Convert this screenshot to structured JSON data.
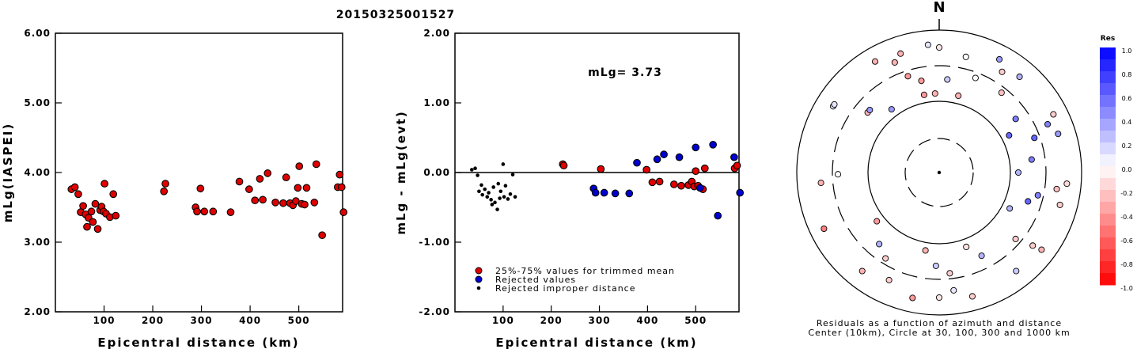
{
  "title": "20150325001527",
  "chart_data": [
    {
      "type": "scatter",
      "xlabel": "Epicentral distance (km)",
      "ylabel": "mLg(IASPEI)",
      "xlim": [
        0,
        590
      ],
      "ylim": [
        2.0,
        6.0
      ],
      "xticks": [
        "100",
        "200",
        "300",
        "400",
        "500"
      ],
      "yticks": [
        "2.00",
        "3.00",
        "4.00",
        "5.00",
        "6.00"
      ],
      "series": [
        {
          "color": "#e00000",
          "points": [
            [
              33,
              3.76
            ],
            [
              40,
              3.79
            ],
            [
              47,
              3.69
            ],
            [
              52,
              3.43
            ],
            [
              57,
              3.52
            ],
            [
              62,
              3.4
            ],
            [
              65,
              3.22
            ],
            [
              68,
              3.35
            ],
            [
              74,
              3.44
            ],
            [
              77,
              3.29
            ],
            [
              82,
              3.55
            ],
            [
              87,
              3.19
            ],
            [
              92,
              3.46
            ],
            [
              95,
              3.51
            ],
            [
              99,
              3.44
            ],
            [
              101,
              3.84
            ],
            [
              104,
              3.41
            ],
            [
              112,
              3.36
            ],
            [
              119,
              3.69
            ],
            [
              124,
              3.38
            ],
            [
              223,
              3.73
            ],
            [
              226,
              3.84
            ],
            [
              288,
              3.5
            ],
            [
              291,
              3.44
            ],
            [
              298,
              3.77
            ],
            [
              306,
              3.44
            ],
            [
              324,
              3.44
            ],
            [
              360,
              3.43
            ],
            [
              378,
              3.87
            ],
            [
              398,
              3.76
            ],
            [
              410,
              3.6
            ],
            [
              420,
              3.91
            ],
            [
              426,
              3.61
            ],
            [
              436,
              3.99
            ],
            [
              452,
              3.57
            ],
            [
              468,
              3.56
            ],
            [
              474,
              3.93
            ],
            [
              482,
              3.56
            ],
            [
              488,
              3.53
            ],
            [
              494,
              3.59
            ],
            [
              498,
              3.78
            ],
            [
              501,
              4.09
            ],
            [
              506,
              3.55
            ],
            [
              512,
              3.54
            ],
            [
              516,
              3.78
            ],
            [
              532,
              3.57
            ],
            [
              536,
              4.12
            ],
            [
              548,
              3.1
            ],
            [
              580,
              3.79
            ],
            [
              584,
              3.97
            ],
            [
              588,
              3.79
            ],
            [
              592,
              3.43
            ]
          ]
        }
      ]
    },
    {
      "type": "scatter",
      "xlabel": "Epicentral distance (km)",
      "ylabel": "mLg - mLg(evt)",
      "xlim": [
        0,
        590
      ],
      "ylim": [
        -2.0,
        2.0
      ],
      "xticks": [
        "100",
        "200",
        "300",
        "400",
        "500"
      ],
      "yticks": [
        "-2.00",
        "-1.00",
        "0.00",
        "1.00",
        "2.00"
      ],
      "annotation": "mLg= 3.73",
      "legend": [
        {
          "label": "25%-75% values for trimmed mean",
          "color": "#e00000"
        },
        {
          "label": "Rejected values",
          "color": "#0000d0"
        },
        {
          "label": "Rejected improper distance",
          "color": "#000000"
        }
      ],
      "series": [
        {
          "color": "#e00000",
          "points": [
            [
              224,
              0.12
            ],
            [
              226,
              0.1
            ],
            [
              303,
              0.05
            ],
            [
              398,
              0.04
            ],
            [
              410,
              -0.14
            ],
            [
              425,
              -0.13
            ],
            [
              455,
              -0.17
            ],
            [
              470,
              -0.19
            ],
            [
              485,
              -0.18
            ],
            [
              492,
              -0.13
            ],
            [
              497,
              -0.2
            ],
            [
              500,
              0.02
            ],
            [
              505,
              -0.19
            ],
            [
              515,
              -0.24
            ],
            [
              519,
              0.06
            ],
            [
              581,
              0.06
            ],
            [
              586,
              0.1
            ]
          ]
        },
        {
          "color": "#0000d0",
          "points": [
            [
              288,
              -0.23
            ],
            [
              292,
              -0.29
            ],
            [
              310,
              -0.29
            ],
            [
              333,
              -0.3
            ],
            [
              362,
              -0.3
            ],
            [
              378,
              0.14
            ],
            [
              420,
              0.19
            ],
            [
              434,
              0.26
            ],
            [
              466,
              0.22
            ],
            [
              500,
              0.36
            ],
            [
              509,
              -0.22
            ],
            [
              536,
              0.4
            ],
            [
              546,
              -0.62
            ],
            [
              580,
              0.22
            ],
            [
              592,
              -0.29
            ]
          ]
        },
        {
          "color": "#000000",
          "points": [
            [
              35,
              0.04
            ],
            [
              42,
              0.06
            ],
            [
              47,
              -0.04
            ],
            [
              50,
              -0.27
            ],
            [
              55,
              -0.18
            ],
            [
              57,
              -0.32
            ],
            [
              62,
              -0.24
            ],
            [
              67,
              -0.35
            ],
            [
              70,
              -0.29
            ],
            [
              75,
              -0.39
            ],
            [
              77,
              -0.46
            ],
            [
              80,
              -0.21
            ],
            [
              83,
              -0.43
            ],
            [
              88,
              -0.53
            ],
            [
              90,
              -0.16
            ],
            [
              93,
              -0.37
            ],
            [
              95,
              -0.27
            ],
            [
              100,
              0.12
            ],
            [
              102,
              -0.35
            ],
            [
              105,
              -0.19
            ],
            [
              110,
              -0.38
            ],
            [
              115,
              -0.31
            ],
            [
              120,
              -0.03
            ],
            [
              125,
              -0.35
            ]
          ]
        }
      ]
    },
    {
      "type": "scatter",
      "subtype": "polar-map",
      "north_label": "N",
      "caption_line1": "Residuals as a function of azimuth and distance",
      "caption_line2": "Center (10km), Circle at 30, 100, 300 and 1000 km",
      "colorbar": {
        "title": "Res",
        "labels": [
          "1.0",
          "0.8",
          "0.6",
          "0.4",
          "0.2",
          "0.0",
          "-0.2",
          "-0.4",
          "-0.6",
          "-0.8",
          "-1.0"
        ]
      },
      "stations": [
        [
          0,
          -0.1
        ],
        [
          5,
          0.2
        ],
        [
          14,
          -0.3
        ],
        [
          28,
          0.4
        ],
        [
          32,
          -0.2
        ],
        [
          38,
          -0.25
        ],
        [
          40,
          0.3
        ],
        [
          55,
          0.5
        ],
        [
          62,
          0.6
        ],
        [
          63,
          -0.2
        ],
        [
          66,
          0.5
        ],
        [
          70,
          0.6
        ],
        [
          72,
          0.4
        ],
        [
          82,
          0.5
        ],
        [
          90,
          0.3
        ],
        [
          95,
          -0.15
        ],
        [
          98,
          -0.25
        ],
        [
          103,
          0.5
        ],
        [
          105,
          -0.2
        ],
        [
          108,
          0.6
        ],
        [
          117,
          0.3
        ],
        [
          127,
          -0.3
        ],
        [
          128,
          -0.2
        ],
        [
          131,
          -0.2
        ],
        [
          142,
          0.2
        ],
        [
          153,
          0.3
        ],
        [
          160,
          -0.1
        ],
        [
          165,
          -0.2
        ],
        [
          173,
          0.1
        ],
        [
          174,
          -0.2
        ],
        [
          180,
          -0.1
        ],
        [
          182,
          0.2
        ],
        [
          190,
          -0.3
        ],
        [
          192,
          -0.4
        ],
        [
          205,
          -0.2
        ],
        [
          212,
          -0.2
        ],
        [
          218,
          -0.3
        ],
        [
          220,
          0.3
        ],
        [
          232,
          -0.4
        ],
        [
          244,
          -0.5
        ],
        [
          265,
          -0.3
        ],
        [
          269,
          0.0
        ],
        [
          302,
          0.1
        ],
        [
          310,
          -0.3
        ],
        [
          323,
          0.4
        ],
        [
          330,
          -0.3
        ],
        [
          338,
          -0.3
        ],
        [
          342,
          -0.4
        ],
        [
          342,
          -0.3
        ],
        [
          349,
          -0.4
        ],
        [
          357,
          -0.3
        ],
        [
          355,
          0.1
        ],
        [
          13,
          0.0
        ],
        [
          21,
          0.0
        ],
        [
          303,
          0.1
        ],
        [
          312,
          0.4
        ],
        [
          349,
          -0.4
        ]
      ]
    }
  ]
}
